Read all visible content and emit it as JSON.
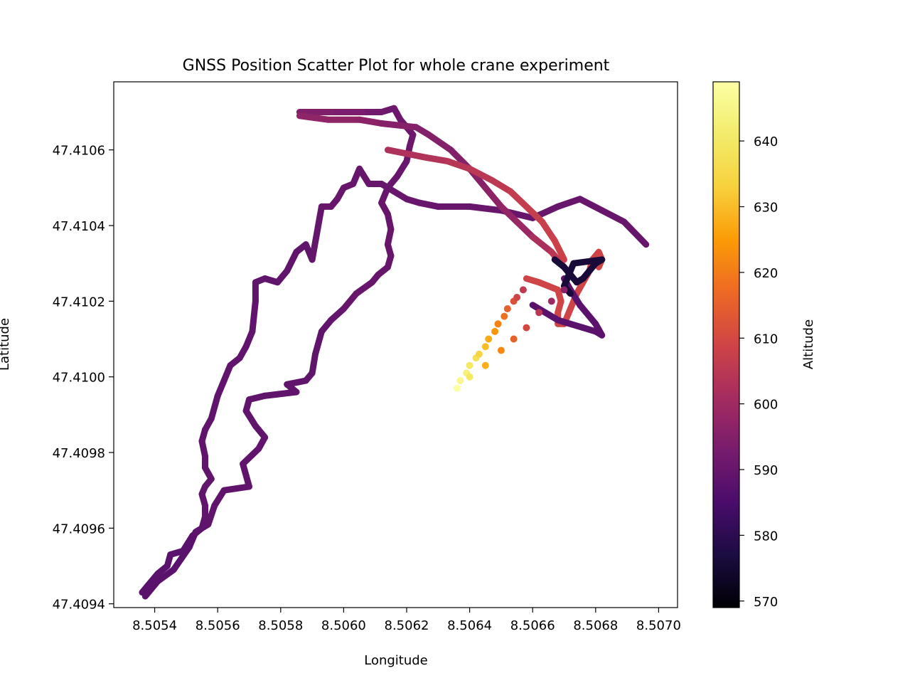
{
  "chart_data": {
    "type": "scatter",
    "title": "GNSS Position Scatter Plot for whole crane experiment",
    "xlabel": "Longitude",
    "ylabel": "Latitude",
    "xlim": [
      8.50527,
      8.50706
    ],
    "ylim": [
      47.40939,
      47.41078
    ],
    "xticks": [
      "8.5054",
      "8.5056",
      "8.5058",
      "8.5060",
      "8.5062",
      "8.5064",
      "8.5066",
      "8.5068",
      "8.5070"
    ],
    "yticks": [
      "47.4094",
      "47.4096",
      "47.4098",
      "47.4100",
      "47.4102",
      "47.4104",
      "47.4106"
    ],
    "grid": false,
    "colorbar": {
      "label": "Altitude",
      "range": [
        569,
        649
      ],
      "ticks": [
        "570",
        "580",
        "590",
        "600",
        "610",
        "620",
        "630",
        "640"
      ],
      "colormap": "inferno"
    },
    "series": [
      {
        "style": "track",
        "points": [
          [
            8.50536,
            47.40943,
            588
          ],
          [
            8.50538,
            47.40945,
            588
          ],
          [
            8.50541,
            47.40948,
            588
          ],
          [
            8.50544,
            47.4095,
            588
          ],
          [
            8.50545,
            47.40953,
            588
          ],
          [
            8.50549,
            47.40954,
            588
          ],
          [
            8.50552,
            47.40958,
            588
          ],
          [
            8.50555,
            47.4096,
            588
          ],
          [
            8.50556,
            47.40963,
            589
          ],
          [
            8.50556,
            47.40966,
            589
          ],
          [
            8.50555,
            47.40969,
            589
          ],
          [
            8.50556,
            47.40971,
            589
          ],
          [
            8.50558,
            47.40973,
            589
          ],
          [
            8.50556,
            47.40976,
            589
          ],
          [
            8.50556,
            47.40979,
            589
          ],
          [
            8.50555,
            47.40983,
            589
          ],
          [
            8.50556,
            47.40986,
            589
          ],
          [
            8.50558,
            47.40989,
            589
          ],
          [
            8.5056,
            47.40995,
            589
          ],
          [
            8.50562,
            47.40999,
            589
          ],
          [
            8.50564,
            47.41003,
            589
          ],
          [
            8.50567,
            47.41005,
            589
          ],
          [
            8.50569,
            47.41008,
            589
          ],
          [
            8.50571,
            47.41012,
            589
          ],
          [
            8.50572,
            47.4102,
            589
          ],
          [
            8.50572,
            47.41025,
            589
          ],
          [
            8.50575,
            47.41026,
            589
          ],
          [
            8.50579,
            47.41025,
            589
          ],
          [
            8.50582,
            47.41028,
            589
          ],
          [
            8.50585,
            47.41033,
            589
          ],
          [
            8.50588,
            47.41035,
            589
          ],
          [
            8.5059,
            47.41031,
            589
          ],
          [
            8.50593,
            47.41045,
            590
          ],
          [
            8.50596,
            47.41045,
            590
          ],
          [
            8.50598,
            47.41047,
            590
          ],
          [
            8.506,
            47.4105,
            590
          ],
          [
            8.50603,
            47.41051,
            590
          ],
          [
            8.50605,
            47.41055,
            590
          ],
          [
            8.50608,
            47.41051,
            590
          ],
          [
            8.50612,
            47.41051,
            590
          ],
          [
            8.50616,
            47.41049,
            590
          ],
          [
            8.5062,
            47.41047,
            590
          ],
          [
            8.50624,
            47.41046,
            590
          ],
          [
            8.5063,
            47.41045,
            590
          ],
          [
            8.5064,
            47.41045,
            590
          ],
          [
            8.5065,
            47.41044,
            590
          ],
          [
            8.5066,
            47.41042,
            590
          ],
          [
            8.50668,
            47.41045,
            590
          ],
          [
            8.50675,
            47.41047,
            590
          ],
          [
            8.50682,
            47.41044,
            590
          ],
          [
            8.50689,
            47.41041,
            590
          ],
          [
            8.50696,
            47.41035,
            590
          ]
        ]
      },
      {
        "style": "track",
        "points": [
          [
            8.50537,
            47.40942,
            588
          ],
          [
            8.50541,
            47.40946,
            588
          ],
          [
            8.50546,
            47.40949,
            588
          ],
          [
            8.50551,
            47.40955,
            588
          ],
          [
            8.50553,
            47.40959,
            588
          ],
          [
            8.50557,
            47.40961,
            589
          ],
          [
            8.50559,
            47.40966,
            589
          ],
          [
            8.50562,
            47.4097,
            589
          ],
          [
            8.5057,
            47.40971,
            589
          ],
          [
            8.50568,
            47.40977,
            589
          ],
          [
            8.50573,
            47.40981,
            589
          ],
          [
            8.50575,
            47.40984,
            589
          ],
          [
            8.50572,
            47.40987,
            589
          ],
          [
            8.50569,
            47.40991,
            589
          ],
          [
            8.5057,
            47.40994,
            589
          ],
          [
            8.50575,
            47.40995,
            589
          ],
          [
            8.50585,
            47.40996,
            589
          ],
          [
            8.50582,
            47.40998,
            589
          ],
          [
            8.50588,
            47.40999,
            589
          ],
          [
            8.5059,
            47.41001,
            589
          ],
          [
            8.50591,
            47.41006,
            589
          ],
          [
            8.50593,
            47.41012,
            589
          ],
          [
            8.50596,
            47.41015,
            589
          ],
          [
            8.506,
            47.41018,
            590
          ],
          [
            8.50604,
            47.41022,
            590
          ],
          [
            8.50609,
            47.41025,
            590
          ],
          [
            8.50611,
            47.41027,
            590
          ],
          [
            8.50614,
            47.41029,
            590
          ],
          [
            8.50615,
            47.41032,
            590
          ],
          [
            8.50614,
            47.41035,
            590
          ],
          [
            8.50615,
            47.41039,
            590
          ],
          [
            8.50614,
            47.41043,
            590
          ],
          [
            8.50612,
            47.41046,
            590
          ],
          [
            8.50614,
            47.4105,
            590
          ],
          [
            8.50617,
            47.41053,
            590
          ],
          [
            8.5062,
            47.41057,
            590
          ],
          [
            8.50621,
            47.41061,
            590
          ],
          [
            8.50622,
            47.41064,
            591
          ],
          [
            8.50618,
            47.41068,
            591
          ],
          [
            8.50616,
            47.41071,
            591
          ],
          [
            8.50612,
            47.4107,
            591
          ],
          [
            8.50606,
            47.4107,
            593
          ],
          [
            8.50596,
            47.4107,
            594
          ],
          [
            8.50586,
            47.4107,
            595
          ]
        ]
      },
      {
        "style": "track",
        "points": [
          [
            8.50586,
            47.41069,
            597
          ],
          [
            8.50595,
            47.41068,
            597
          ],
          [
            8.50605,
            47.41068,
            597
          ],
          [
            8.50612,
            47.41067,
            596
          ],
          [
            8.50623,
            47.41066,
            595
          ],
          [
            8.50627,
            47.41064,
            595
          ],
          [
            8.50634,
            47.4106,
            595
          ],
          [
            8.5064,
            47.41055,
            595
          ],
          [
            8.50645,
            47.4105,
            596
          ],
          [
            8.5065,
            47.41045,
            597
          ],
          [
            8.50655,
            47.41041,
            598
          ],
          [
            8.5066,
            47.41037,
            600
          ],
          [
            8.50666,
            47.41033,
            604
          ],
          [
            8.5067,
            47.41029,
            606
          ],
          [
            8.50673,
            47.41026,
            608
          ]
        ]
      },
      {
        "style": "track",
        "points": [
          [
            8.50614,
            47.4106,
            602
          ],
          [
            8.5062,
            47.41059,
            603
          ],
          [
            8.50626,
            47.41058,
            603
          ],
          [
            8.50633,
            47.41057,
            604
          ],
          [
            8.5064,
            47.41055,
            605
          ],
          [
            8.50647,
            47.41052,
            605
          ],
          [
            8.50653,
            47.41049,
            606
          ],
          [
            8.50658,
            47.41045,
            607
          ],
          [
            8.50663,
            47.41041,
            607
          ],
          [
            8.50667,
            47.41036,
            608
          ],
          [
            8.5067,
            47.41031,
            608
          ]
        ]
      },
      {
        "style": "track",
        "points": [
          [
            8.50658,
            47.41026,
            609
          ],
          [
            8.50662,
            47.41025,
            609
          ],
          [
            8.50665,
            47.41024,
            609
          ],
          [
            8.50668,
            47.41023,
            609
          ],
          [
            8.50669,
            47.4102,
            609
          ],
          [
            8.50668,
            47.41017,
            609
          ],
          [
            8.50668,
            47.41014,
            609
          ],
          [
            8.5067,
            47.41014,
            609
          ],
          [
            8.50672,
            47.41018,
            609
          ],
          [
            8.50674,
            47.41022,
            609
          ],
          [
            8.50676,
            47.41025,
            609
          ],
          [
            8.50678,
            47.41028,
            609
          ],
          [
            8.50679,
            47.41031,
            609
          ],
          [
            8.50681,
            47.41033,
            609
          ],
          [
            8.50682,
            47.41031,
            609
          ],
          [
            8.50681,
            47.41029,
            609
          ]
        ]
      },
      {
        "style": "track",
        "points": [
          [
            8.5066,
            47.41019,
            588
          ],
          [
            8.50664,
            47.41017,
            588
          ],
          [
            8.50668,
            47.41015,
            588
          ],
          [
            8.50672,
            47.41014,
            588
          ],
          [
            8.50676,
            47.41013,
            588
          ],
          [
            8.5068,
            47.41012,
            588
          ],
          [
            8.50682,
            47.41011,
            588
          ],
          [
            8.5068,
            47.41014,
            588
          ],
          [
            8.50677,
            47.41017,
            588
          ],
          [
            8.50675,
            47.41019,
            588
          ],
          [
            8.50672,
            47.41023,
            588
          ],
          [
            8.5067,
            47.41026,
            588
          ]
        ]
      },
      {
        "style": "track",
        "points": [
          [
            8.50667,
            47.41031,
            576
          ],
          [
            8.5067,
            47.41029,
            576
          ],
          [
            8.50672,
            47.41027,
            576
          ],
          [
            8.50674,
            47.41025,
            576
          ],
          [
            8.50676,
            47.41026,
            576
          ],
          [
            8.50678,
            47.41028,
            576
          ],
          [
            8.5068,
            47.4103,
            576
          ],
          [
            8.50682,
            47.41031,
            576
          ],
          [
            8.50673,
            47.4103,
            576
          ],
          [
            8.5067,
            47.41024,
            576
          ],
          [
            8.50672,
            47.41022,
            576
          ]
        ]
      },
      {
        "style": "dots",
        "points": [
          [
            8.50636,
            47.40997,
            649
          ],
          [
            8.50637,
            47.40999,
            646
          ],
          [
            8.50639,
            47.41001,
            643
          ],
          [
            8.5064,
            47.41003,
            640
          ],
          [
            8.50642,
            47.41005,
            637
          ],
          [
            8.50643,
            47.41006,
            634
          ],
          [
            8.50645,
            47.41008,
            630
          ],
          [
            8.50646,
            47.4101,
            627
          ],
          [
            8.50648,
            47.41012,
            624
          ],
          [
            8.50649,
            47.41014,
            621
          ],
          [
            8.50651,
            47.41016,
            618
          ],
          [
            8.50652,
            47.41018,
            615
          ],
          [
            8.50654,
            47.4102,
            612
          ],
          [
            8.50655,
            47.41021,
            609
          ],
          [
            8.50657,
            47.41023,
            606
          ],
          [
            8.5064,
            47.41,
            640
          ],
          [
            8.50645,
            47.41003,
            628
          ],
          [
            8.5065,
            47.41007,
            622
          ],
          [
            8.50654,
            47.4101,
            615
          ],
          [
            8.50658,
            47.41013,
            610
          ],
          [
            8.50662,
            47.41017,
            605
          ],
          [
            8.50666,
            47.4102,
            600
          ],
          [
            8.5067,
            47.41023,
            596
          ]
        ]
      }
    ]
  }
}
